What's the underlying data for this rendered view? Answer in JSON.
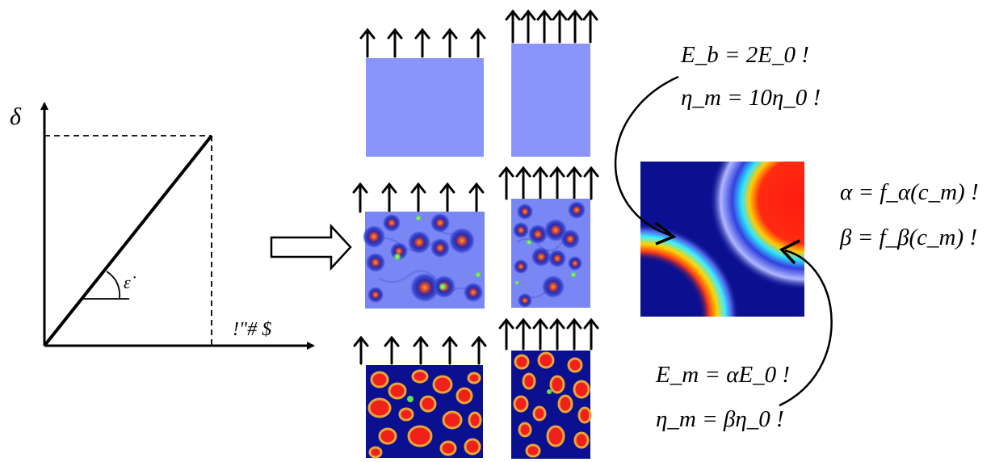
{
  "graph": {
    "y_axis_label": "δ",
    "slope_label": "ε̇",
    "x_axis_label": "!\"# $"
  },
  "equations": {
    "top_right": [
      "E_b = 2E_0 !",
      "η_m = 10η_0 !"
    ],
    "right": [
      "α = f_α(c_m) !",
      "β = f_β(c_m) !"
    ],
    "bottom_right": [
      "E_m = αE_0 !",
      "η_m = βη_0 !"
    ]
  },
  "colors": {
    "uniform_block": "#8a95fb",
    "background_dark": "#0a1090",
    "inclusion_red": "#f0201a",
    "halo_light": "#6f7ef5"
  }
}
